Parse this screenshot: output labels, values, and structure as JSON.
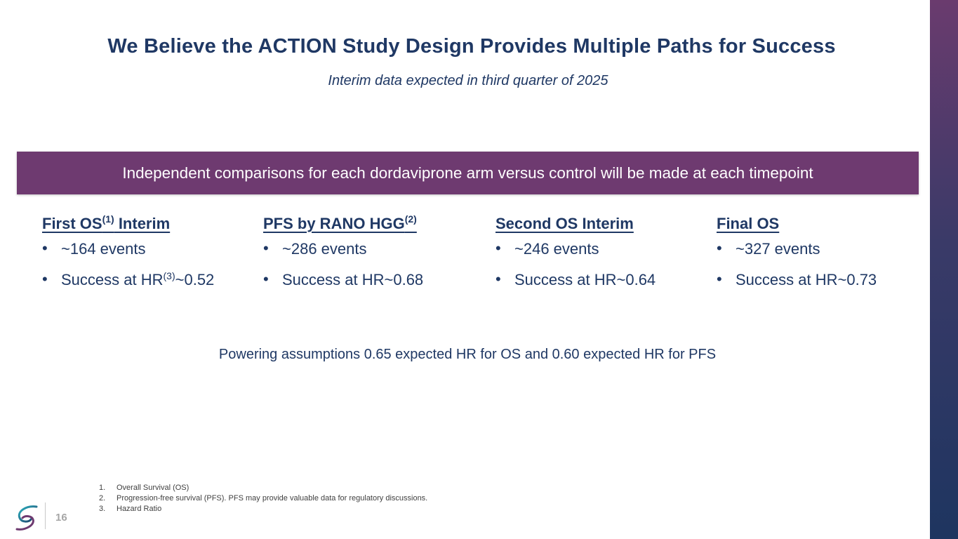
{
  "slide": {
    "title": "We Believe the ACTION Study Design Provides Multiple Paths for Success",
    "subtitle": "Interim data expected in third quarter of 2025",
    "banner": "Independent comparisons for each dordaviprone arm versus control will be made at each timepoint",
    "columns": [
      {
        "heading": "First OS",
        "heading_sup": "(1)",
        "heading_suffix": " Interim",
        "bullets": [
          {
            "text": "~164 events"
          },
          {
            "text": "Success at HR",
            "sup": "(3)",
            "suffix": "~0.52"
          }
        ]
      },
      {
        "heading": "PFS by RANO HGG",
        "heading_sup": "(2)",
        "heading_suffix": "",
        "bullets": [
          {
            "text": "~286 events"
          },
          {
            "text": "Success at HR~0.68"
          }
        ]
      },
      {
        "heading": "Second OS Interim",
        "bullets": [
          {
            "text": "~246 events"
          },
          {
            "text": "Success at HR~0.64"
          }
        ]
      },
      {
        "heading": "Final OS",
        "bullets": [
          {
            "text": "~327 events"
          },
          {
            "text": "Success at HR~0.73"
          }
        ]
      }
    ],
    "bullet_glyph": "•",
    "powering_note": "Powering assumptions 0.65 expected HR for OS and 0.60 expected HR for PFS",
    "footnotes": [
      {
        "num": "1.",
        "text": "Overall Survival (OS)"
      },
      {
        "num": "2.",
        "text": "Progression-free survival (PFS).  PFS may provide valuable data for regulatory discussions."
      },
      {
        "num": "3.",
        "text": "Hazard Ratio"
      }
    ],
    "page_number": "16",
    "logo_icon": "company-swirl-logo"
  },
  "colors": {
    "navy": "#1f3864",
    "banner_purple": "#6e3a70",
    "sidebar_top": "#6a3b6e",
    "sidebar_bottom": "#1e3560"
  }
}
